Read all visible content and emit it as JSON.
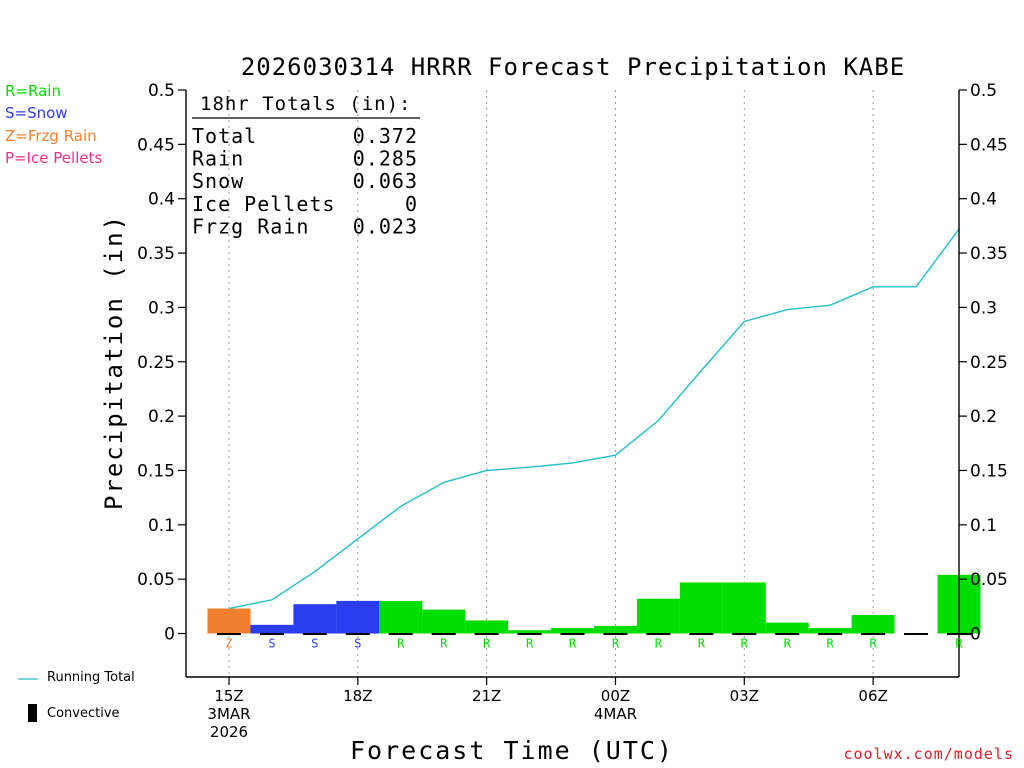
{
  "chart_data": {
    "type": "bar+line",
    "title": "2026030314 HRRR Forecast Precipitation KABE",
    "xlabel": "Forecast Time (UTC)",
    "ylabel": "Precipitation (in)",
    "ylim": [
      -0.04,
      0.5
    ],
    "y_ticks": [
      0,
      0.05,
      0.1,
      0.15,
      0.2,
      0.25,
      0.3,
      0.35,
      0.4,
      0.45,
      0.5
    ],
    "y_tick_labels": [
      "0",
      "0.05",
      "0.1",
      "0.15",
      "0.2",
      "0.25",
      "0.3",
      "0.35",
      "0.4",
      "0.45",
      "0.5"
    ],
    "x_range_hours": [
      -1,
      17
    ],
    "x_ticks": [
      {
        "hour": 0,
        "lines": [
          "15Z",
          "3MAR",
          "2026"
        ]
      },
      {
        "hour": 3,
        "lines": [
          "18Z"
        ]
      },
      {
        "hour": 6,
        "lines": [
          "21Z"
        ]
      },
      {
        "hour": 9,
        "lines": [
          "00Z",
          "4MAR"
        ]
      },
      {
        "hour": 12,
        "lines": [
          "03Z"
        ]
      },
      {
        "hour": 15,
        "lines": [
          "06Z"
        ]
      }
    ],
    "bars": [
      {
        "hour": 0,
        "value": 0.023,
        "ptype": "Z"
      },
      {
        "hour": 1,
        "value": 0.008,
        "ptype": "S"
      },
      {
        "hour": 2,
        "value": 0.027,
        "ptype": "S"
      },
      {
        "hour": 3,
        "value": 0.03,
        "ptype": "S"
      },
      {
        "hour": 4,
        "value": 0.03,
        "ptype": "R"
      },
      {
        "hour": 5,
        "value": 0.022,
        "ptype": "R"
      },
      {
        "hour": 6,
        "value": 0.012,
        "ptype": "R"
      },
      {
        "hour": 7,
        "value": 0.003,
        "ptype": "R"
      },
      {
        "hour": 8,
        "value": 0.005,
        "ptype": "R"
      },
      {
        "hour": 9,
        "value": 0.007,
        "ptype": "R"
      },
      {
        "hour": 10,
        "value": 0.032,
        "ptype": "R"
      },
      {
        "hour": 11,
        "value": 0.047,
        "ptype": "R"
      },
      {
        "hour": 12,
        "value": 0.047,
        "ptype": "R"
      },
      {
        "hour": 13,
        "value": 0.01,
        "ptype": "R"
      },
      {
        "hour": 14,
        "value": 0.005,
        "ptype": "R"
      },
      {
        "hour": 15,
        "value": 0.017,
        "ptype": "R"
      },
      {
        "hour": 16,
        "value": 0.0,
        "ptype": ""
      },
      {
        "hour": 17,
        "value": 0.054,
        "ptype": "R"
      }
    ],
    "running_total": {
      "hours": [
        0,
        1,
        2,
        3,
        4,
        5,
        6,
        7,
        8,
        9,
        10,
        11,
        12,
        13,
        14,
        15,
        16,
        17
      ],
      "values": [
        0.023,
        0.031,
        0.057,
        0.087,
        0.117,
        0.139,
        0.15,
        0.153,
        0.157,
        0.164,
        0.196,
        0.242,
        0.287,
        0.298,
        0.302,
        0.319,
        0.319,
        0.372
      ]
    },
    "totals_box": {
      "heading": "18hr Totals (in):",
      "rows": [
        {
          "label": "Total",
          "value": "0.372"
        },
        {
          "label": "Rain",
          "value": "0.285"
        },
        {
          "label": "Snow",
          "value": "0.063"
        },
        {
          "label": "Ice Pellets",
          "value": "0"
        },
        {
          "label": "Frzg Rain",
          "value": "0.023"
        }
      ]
    },
    "ptype_legend": [
      {
        "code": "R",
        "text": "R=Rain",
        "color": "#00dd00"
      },
      {
        "code": "S",
        "text": "S=Snow",
        "color": "#2a3ef0"
      },
      {
        "code": "Z",
        "text": "Z=Frzg Rain",
        "color": "#f08030"
      },
      {
        "code": "P",
        "text": "P=Ice Pellets",
        "color": "#f0308c"
      }
    ],
    "colors": {
      "R": "#00dd00",
      "S": "#2a3ef0",
      "Z": "#f08030",
      "P": "#f0308c",
      "running_total": "#20c0c8",
      "convective": "#000000"
    },
    "series_legend": {
      "running_total": "Running Total",
      "convective": "Convective"
    }
  },
  "footer": {
    "credit": "coolwx.com/models"
  }
}
